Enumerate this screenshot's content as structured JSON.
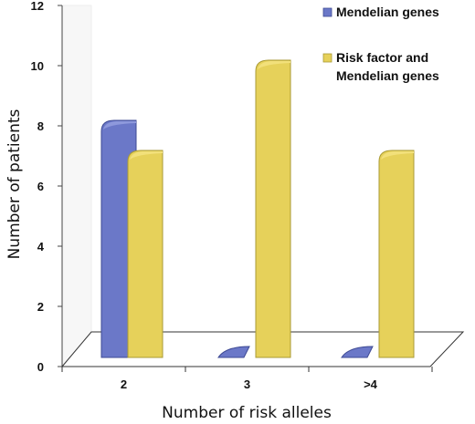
{
  "chart_data": {
    "type": "bar",
    "categories": [
      "2",
      "3",
      ">4"
    ],
    "series": [
      {
        "name": "Mendelian genes",
        "values": [
          8,
          0,
          0
        ],
        "color": "#6b78c8"
      },
      {
        "name": "Risk factor and Mendelian genes",
        "values": [
          7,
          10,
          7
        ],
        "color": "#e6d15a"
      }
    ],
    "xlabel": "Number of risk alleles",
    "ylabel": "Number of patients",
    "ylim": [
      0,
      12
    ],
    "yticks": [
      "0",
      "2",
      "4",
      "6",
      "8",
      "10",
      "12"
    ],
    "grid": false,
    "legend_position": "top-right"
  }
}
